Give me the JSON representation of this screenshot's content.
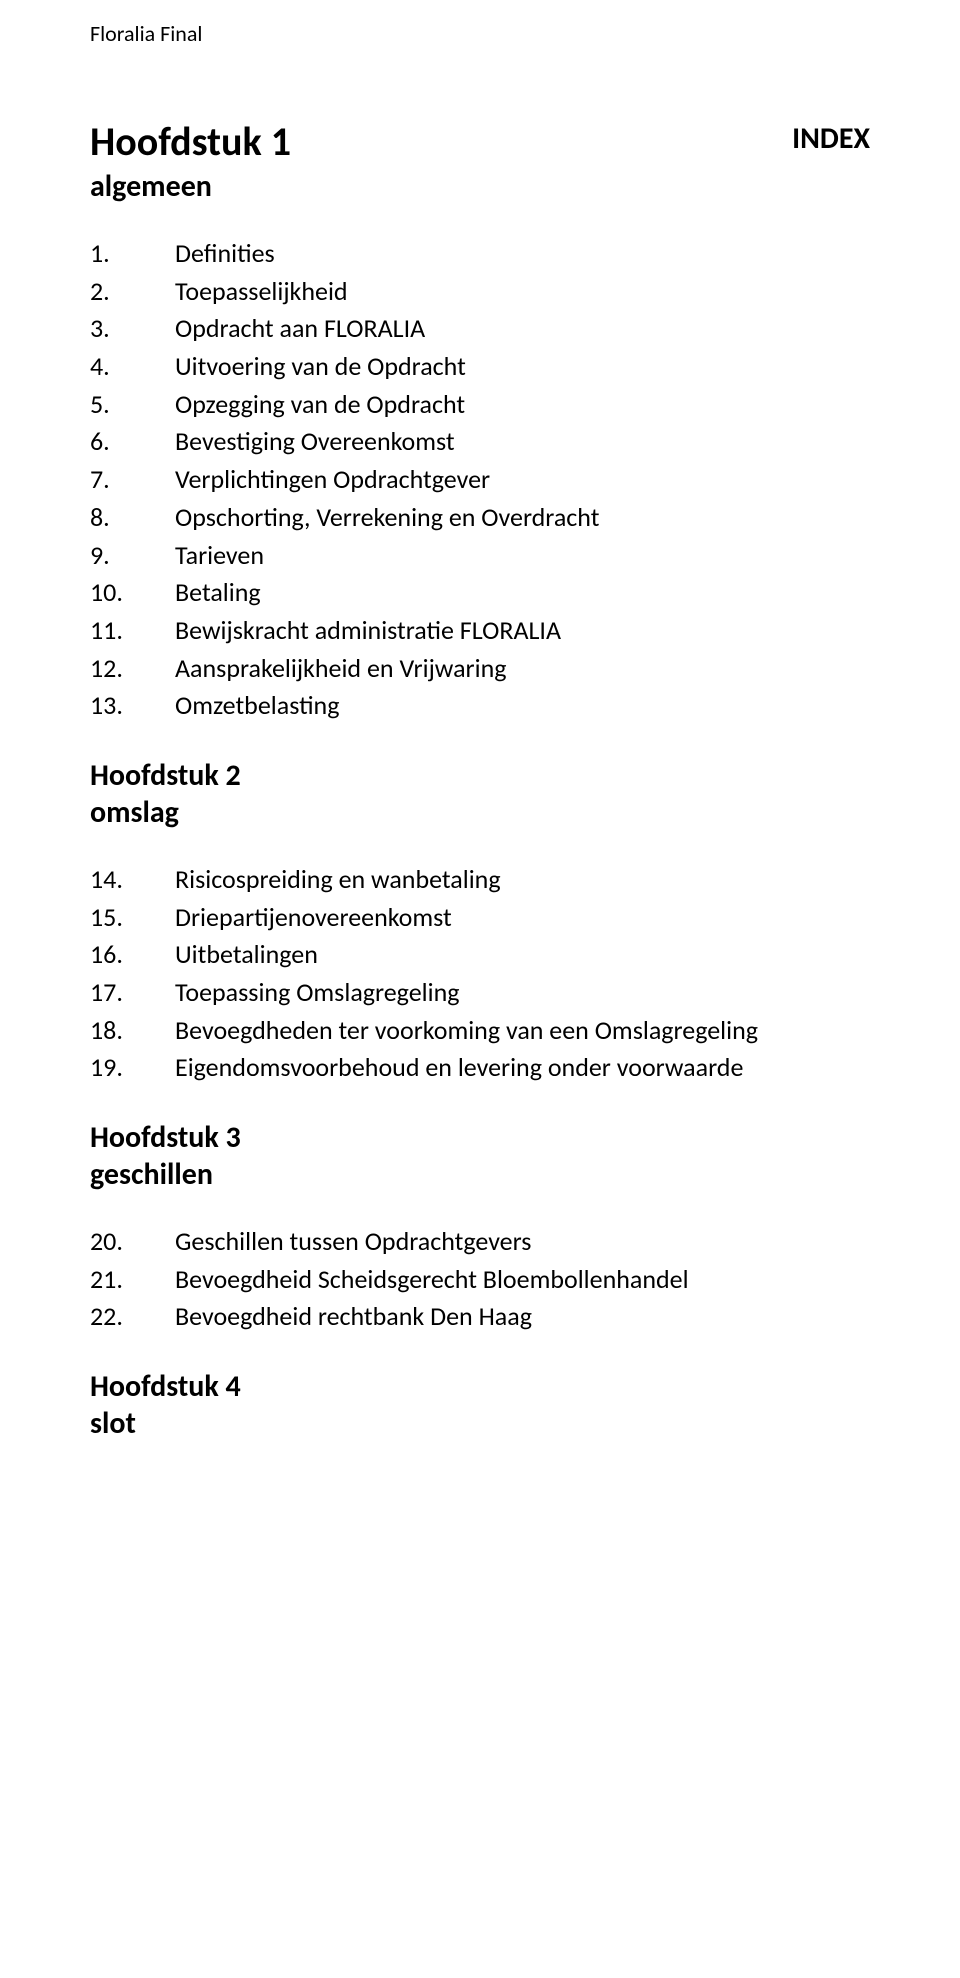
{
  "header_text": "Floralia Final",
  "index_label": "INDEX",
  "chapters": [
    {
      "title": "Hoofdstuk 1",
      "subtitle": "algemeen",
      "items": [
        {
          "num": "1.",
          "label": "Definities"
        },
        {
          "num": "2.",
          "label": "Toepasselijkheid"
        },
        {
          "num": "3.",
          "label": "Opdracht aan FLORALIA"
        },
        {
          "num": "4.",
          "label": "Uitvoering van de Opdracht"
        },
        {
          "num": "5.",
          "label": "Opzegging van de Opdracht"
        },
        {
          "num": "6.",
          "label": "Bevestiging Overeenkomst"
        },
        {
          "num": "7.",
          "label": "Verplichtingen Opdrachtgever"
        },
        {
          "num": "8.",
          "label": "Opschorting, Verrekening en Overdracht"
        },
        {
          "num": "9.",
          "label": "Tarieven"
        },
        {
          "num": "10.",
          "label": "Betaling"
        },
        {
          "num": "11.",
          "label": "Bewijskracht administratie FLORALIA"
        },
        {
          "num": "12.",
          "label": "Aansprakelijkheid en Vrijwaring"
        },
        {
          "num": "13.",
          "label": "Omzetbelasting"
        }
      ]
    },
    {
      "title": "Hoofdstuk 2",
      "subtitle": "omslag",
      "items": [
        {
          "num": "14.",
          "label": "Risicospreiding en wanbetaling"
        },
        {
          "num": "15.",
          "label": "Driepartijenovereenkomst"
        },
        {
          "num": "16.",
          "label": "Uitbetalingen"
        },
        {
          "num": "17.",
          "label": "Toepassing Omslagregeling"
        },
        {
          "num": "18.",
          "label": "Bevoegdheden ter voorkoming van een Omslagregeling"
        },
        {
          "num": "19.",
          "label": "Eigendomsvoorbehoud en levering onder voorwaarde"
        }
      ]
    },
    {
      "title": "Hoofdstuk 3",
      "subtitle": "geschillen",
      "items": [
        {
          "num": "20.",
          "label": "Geschillen tussen Opdrachtgevers"
        },
        {
          "num": "21.",
          "label": "Bevoegdheid Scheidsgerecht Bloembollenhandel"
        },
        {
          "num": "22.",
          "label": "Bevoegdheid rechtbank Den Haag"
        }
      ]
    },
    {
      "title": "Hoofdstuk 4",
      "subtitle": "slot",
      "items": []
    }
  ]
}
